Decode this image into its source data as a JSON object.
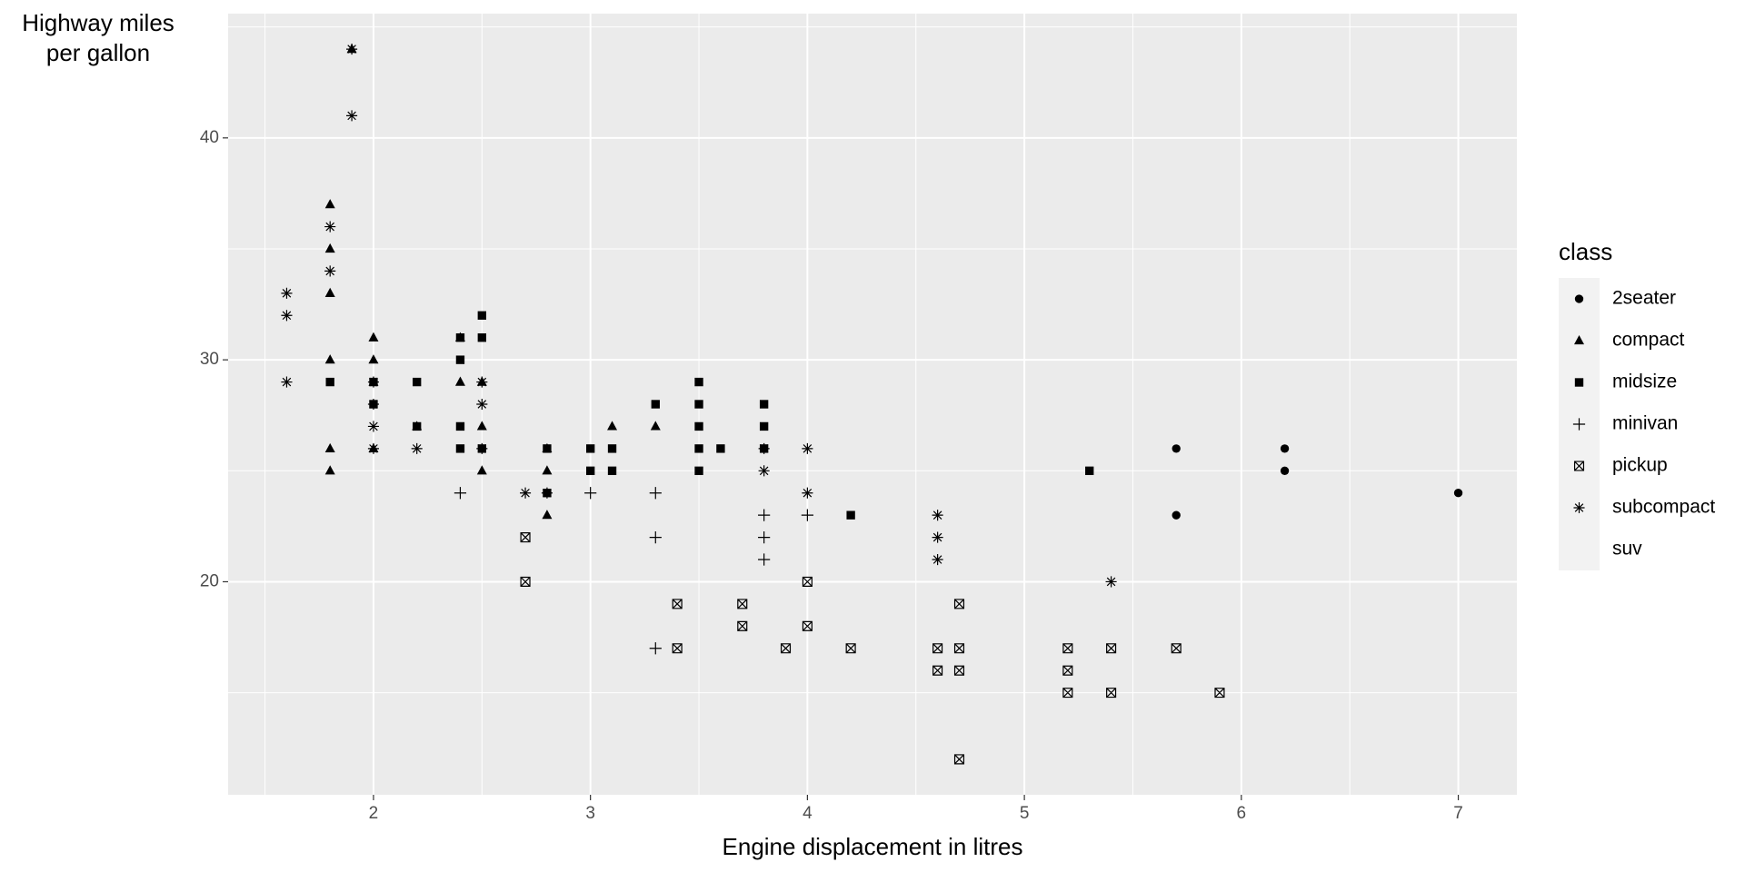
{
  "chart_data": {
    "type": "scatter",
    "x_label": "Engine displacement in litres",
    "y_label": [
      "Highway miles",
      "per gallon"
    ],
    "legend_title": "class",
    "xlim": [
      1.33,
      7.27
    ],
    "ylim": [
      10.4,
      45.6
    ],
    "xticks": [
      2,
      3,
      4,
      5,
      6,
      7
    ],
    "yticks": [
      20,
      30,
      40
    ],
    "x_minor_grid": [
      1.5,
      2.5,
      3.5,
      4.5,
      5.5,
      6.5
    ],
    "y_minor_grid": [
      15,
      25,
      35,
      45
    ],
    "grid": true,
    "legend": "right",
    "series": [
      {
        "name": "2seater",
        "shape": "circle",
        "color": "#000000",
        "x": [
          5.7,
          5.7,
          6.2,
          6.2,
          7.0
        ],
        "values": [
          26,
          23,
          26,
          25,
          24
        ]
      },
      {
        "name": "compact",
        "shape": "triangle",
        "color": "#000000",
        "x": [
          1.8,
          1.8,
          1.8,
          1.8,
          1.8,
          1.8,
          1.9,
          2.0,
          2.0,
          2.0,
          2.0,
          2.2,
          2.4,
          2.4,
          2.5,
          2.5,
          2.5,
          2.8,
          2.8,
          2.8,
          3.1,
          3.3
        ],
        "values": [
          37,
          35,
          33,
          30,
          26,
          25,
          44,
          31,
          30,
          29,
          26,
          27,
          31,
          29,
          29,
          27,
          25,
          26,
          25,
          23,
          27,
          27
        ]
      },
      {
        "name": "midsize",
        "shape": "square",
        "color": "#000000",
        "x": [
          1.8,
          2.0,
          2.0,
          2.2,
          2.2,
          2.4,
          2.4,
          2.4,
          2.4,
          2.5,
          2.5,
          2.5,
          2.8,
          2.8,
          3.0,
          3.0,
          3.1,
          3.1,
          3.3,
          3.5,
          3.5,
          3.5,
          3.5,
          3.5,
          3.6,
          3.8,
          3.8,
          3.8,
          4.2,
          5.3
        ],
        "values": [
          29,
          29,
          28,
          29,
          27,
          31,
          30,
          27,
          26,
          32,
          31,
          26,
          26,
          24,
          26,
          25,
          26,
          25,
          28,
          29,
          28,
          27,
          26,
          25,
          26,
          28,
          27,
          26,
          23,
          25
        ]
      },
      {
        "name": "minivan",
        "shape": "plus",
        "color": "#000000",
        "x": [
          2.4,
          3.0,
          3.3,
          3.3,
          3.3,
          3.8,
          3.8,
          3.8,
          4.0
        ],
        "values": [
          24,
          24,
          24,
          22,
          17,
          23,
          22,
          21,
          23
        ]
      },
      {
        "name": "pickup",
        "shape": "boxcross",
        "color": "#000000",
        "x": [
          2.7,
          2.7,
          3.4,
          3.4,
          3.7,
          3.7,
          3.9,
          4.0,
          4.0,
          4.2,
          4.6,
          4.6,
          4.7,
          4.7,
          4.7,
          4.7,
          5.2,
          5.2,
          5.2,
          5.4,
          5.4,
          5.7,
          5.9
        ],
        "values": [
          22,
          20,
          19,
          17,
          19,
          18,
          17,
          20,
          18,
          17,
          17,
          16,
          19,
          17,
          16,
          12,
          17,
          16,
          15,
          17,
          15,
          17,
          15
        ]
      },
      {
        "name": "subcompact",
        "shape": "asterisk",
        "color": "#000000",
        "x": [
          1.6,
          1.6,
          1.6,
          1.8,
          1.8,
          1.9,
          1.9,
          2.0,
          2.0,
          2.0,
          2.0,
          2.2,
          2.5,
          2.5,
          2.5,
          2.7,
          2.8,
          3.8,
          3.8,
          4.0,
          4.0,
          4.6,
          4.6,
          4.6,
          5.4
        ],
        "values": [
          33,
          32,
          29,
          36,
          34,
          44,
          41,
          29,
          28,
          27,
          26,
          26,
          29,
          28,
          26,
          24,
          24,
          26,
          25,
          26,
          24,
          23,
          22,
          21,
          20
        ]
      },
      {
        "name": "suv",
        "shape": "none",
        "color": "#000000",
        "x": [],
        "values": []
      }
    ]
  }
}
